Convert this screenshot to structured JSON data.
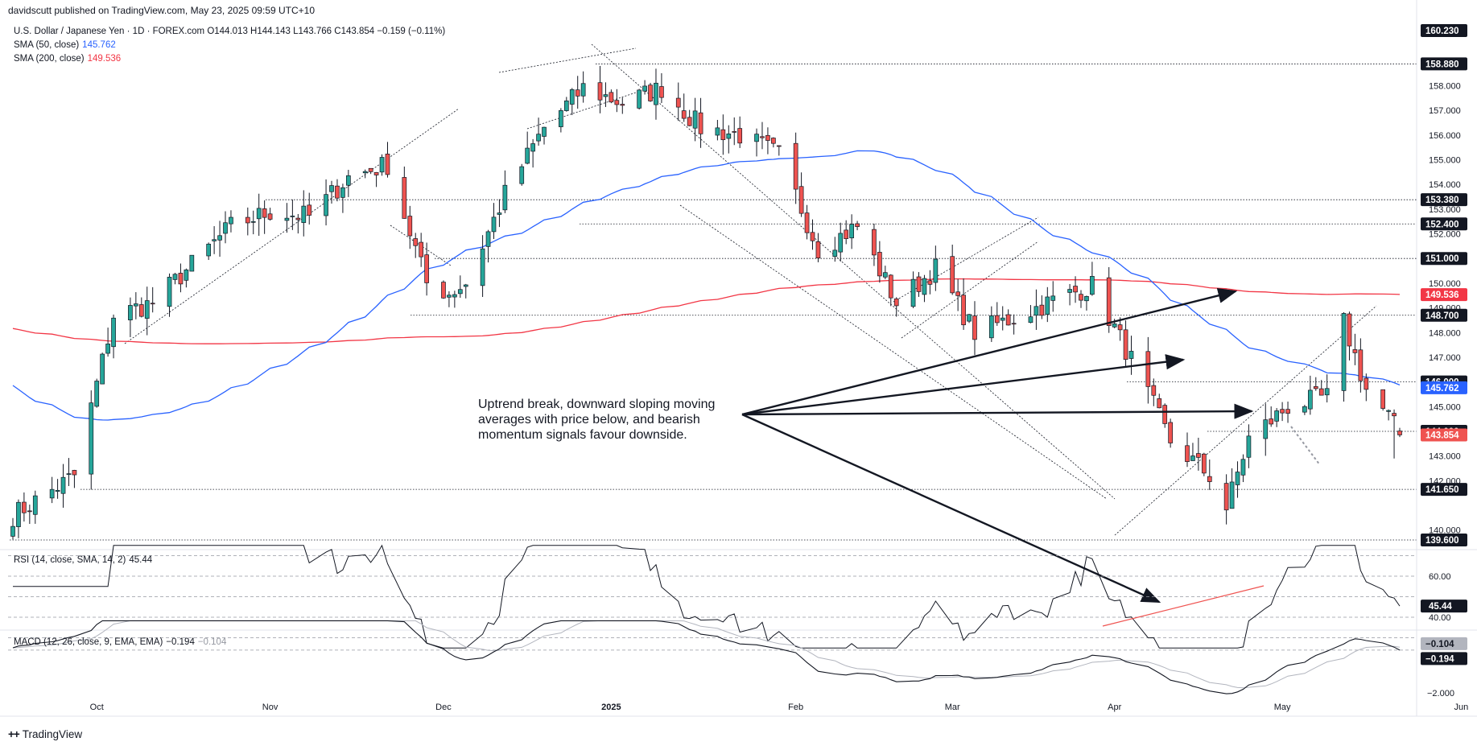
{
  "header": {
    "published": "davidscutt published on TradingView.com, May 23, 2025 09:59 UTC+10",
    "symbol_line": "U.S. Dollar / Japanese Yen · 1D · FOREX.com  O144.013  H144.143  L143.766  C143.854  −0.159 (−0.11%)",
    "sma50_label": "SMA (50, close)",
    "sma50_value": "145.762",
    "sma200_label": "SMA (200, close)",
    "sma200_value": "149.536",
    "rsi_legend": "RSI (14, close, SMA, 14, 2)",
    "rsi_value": "45.44",
    "macd_legend": "MACD (12, 26, close, 9, EMA, EMA)",
    "macd_value": "−0.194",
    "macd_signal": "−0.104"
  },
  "annotation": "Uptrend break, downward sloping moving averages with price below, and bearish momentum signals favour downside.",
  "footer": {
    "brand": "TradingView"
  },
  "colors": {
    "up": "#26a69a",
    "down": "#ef5350",
    "sma50": "#2962ff",
    "sma200": "#f23645",
    "text": "#131722"
  },
  "chart_data": {
    "type": "candlestick",
    "title": "U.S. Dollar / Japanese Yen · 1D · FOREX.com",
    "x_axis_labels": [
      "Oct",
      "Nov",
      "Dec",
      "2025",
      "Feb",
      "Mar",
      "Apr",
      "May",
      "Jun"
    ],
    "y_axis": {
      "ticks": [
        158.0,
        157.0,
        156.0,
        155.0,
        154.0,
        153.0,
        152.0,
        150.0,
        149.0,
        148.0,
        147.0,
        145.0,
        143.0,
        142.0,
        140.0
      ],
      "range": [
        139.2,
        160.6
      ]
    },
    "price_labels": [
      {
        "value": "160.230",
        "kind": "level"
      },
      {
        "value": "158.880",
        "kind": "level"
      },
      {
        "value": "153.380",
        "kind": "level"
      },
      {
        "value": "152.400",
        "kind": "level"
      },
      {
        "value": "151.000",
        "kind": "level"
      },
      {
        "value": "149.536",
        "kind": "sma200"
      },
      {
        "value": "148.700",
        "kind": "level"
      },
      {
        "value": "146.000",
        "kind": "level"
      },
      {
        "value": "145.762",
        "kind": "sma50"
      },
      {
        "value": "144.000",
        "kind": "level"
      },
      {
        "value": "143.854",
        "kind": "last"
      },
      {
        "value": "141.650",
        "kind": "level"
      },
      {
        "value": "139.600",
        "kind": "level"
      }
    ],
    "horizontal_levels": [
      158.88,
      153.38,
      152.4,
      151.0,
      148.7,
      146.0,
      144.0,
      141.65,
      139.6
    ],
    "last_close": 143.854,
    "ohlc_anchor_closes": [
      {
        "date": "2024-09-16",
        "close": 140.6
      },
      {
        "date": "2024-09-27",
        "close": 142.2
      },
      {
        "date": "2024-10-04",
        "close": 148.7
      },
      {
        "date": "2024-10-11",
        "close": 149.2
      },
      {
        "date": "2024-10-25",
        "close": 152.3
      },
      {
        "date": "2024-11-01",
        "close": 152.9
      },
      {
        "date": "2024-11-08",
        "close": 152.7
      },
      {
        "date": "2024-11-15",
        "close": 154.3
      },
      {
        "date": "2024-11-22",
        "close": 154.8
      },
      {
        "date": "2024-11-29",
        "close": 150.0
      },
      {
        "date": "2024-12-03",
        "close": 149.6
      },
      {
        "date": "2024-12-06",
        "close": 150.0
      },
      {
        "date": "2024-12-13",
        "close": 153.6
      },
      {
        "date": "2024-12-20",
        "close": 156.3
      },
      {
        "date": "2024-12-27",
        "close": 157.9
      },
      {
        "date": "2025-01-03",
        "close": 157.3
      },
      {
        "date": "2025-01-10",
        "close": 157.9
      },
      {
        "date": "2025-01-17",
        "close": 156.3
      },
      {
        "date": "2025-01-24",
        "close": 156.0
      },
      {
        "date": "2025-01-31",
        "close": 155.2
      },
      {
        "date": "2025-02-07",
        "close": 151.4
      },
      {
        "date": "2025-02-14",
        "close": 152.3
      },
      {
        "date": "2025-02-21",
        "close": 149.2
      },
      {
        "date": "2025-02-28",
        "close": 150.6
      },
      {
        "date": "2025-03-07",
        "close": 148.0
      },
      {
        "date": "2025-03-14",
        "close": 148.6
      },
      {
        "date": "2025-03-21",
        "close": 149.3
      },
      {
        "date": "2025-03-28",
        "close": 149.9
      },
      {
        "date": "2025-04-04",
        "close": 146.9
      },
      {
        "date": "2025-04-11",
        "close": 143.6
      },
      {
        "date": "2025-04-18",
        "close": 142.2
      },
      {
        "date": "2025-04-21",
        "close": 140.9
      },
      {
        "date": "2025-04-25",
        "close": 143.7
      },
      {
        "date": "2025-05-02",
        "close": 145.0
      },
      {
        "date": "2025-05-09",
        "close": 145.4
      },
      {
        "date": "2025-05-12",
        "close": 148.4
      },
      {
        "date": "2025-05-16",
        "close": 145.7
      },
      {
        "date": "2025-05-20",
        "close": 144.6
      },
      {
        "date": "2025-05-22",
        "close": 143.85
      }
    ],
    "series": [
      {
        "name": "SMA (50, close)",
        "last": 145.762
      },
      {
        "name": "SMA (200, close)",
        "last": 149.536
      }
    ],
    "rsi": {
      "legend": "RSI (14, close, SMA, 14, 2)",
      "value": 45.44,
      "ticks": [
        "60.00",
        "40.00"
      ],
      "value_label": "45.44"
    },
    "macd": {
      "legend": "MACD (12, 26, close, 9, EMA, EMA)",
      "macd": -0.194,
      "signal": -0.104,
      "ticks": [
        "−2.000"
      ],
      "value_labels": [
        "−0.104",
        "−0.194"
      ]
    },
    "grid": false,
    "legend_position": "top-left"
  }
}
